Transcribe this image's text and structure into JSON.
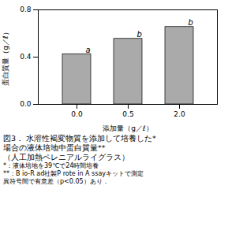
{
  "chart_data": {
    "type": "bar",
    "categories": [
      "0.0",
      "0.5",
      "2.0"
    ],
    "values": [
      0.425,
      0.555,
      0.655
    ],
    "color": "#aaaaaa",
    "xlabel": "添加量（g／ℓ）",
    "ylabel": "蛋白質量（g／ℓ）",
    "ylim": [
      0.0,
      0.8
    ],
    "yticks": [
      {
        "value": 0,
        "label": "0.0"
      },
      0.4,
      0.8
    ],
    "annotations": [
      "a",
      "b",
      "b"
    ],
    "caption": [
      "図3．  水溶性褐変物質を添加して培養した*",
      "場合の液体培地中蛋白質量**",
      "（人工加熱ペレニアルライグラス）",
      "*：液体培地を39℃で24時間培養",
      "**：B io-R ad社製P rote in A ssayキットで測定",
      "異符号間で有意差（p<0.05）あり．"
    ]
  }
}
